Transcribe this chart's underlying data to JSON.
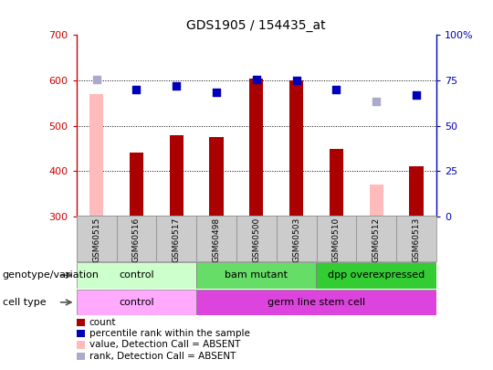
{
  "title": "GDS1905 / 154435_at",
  "samples": [
    "GSM60515",
    "GSM60516",
    "GSM60517",
    "GSM60498",
    "GSM60500",
    "GSM60503",
    "GSM60510",
    "GSM60512",
    "GSM60513"
  ],
  "count_values": [
    570,
    440,
    480,
    475,
    605,
    600,
    450,
    370,
    410
  ],
  "count_absent": [
    true,
    false,
    false,
    false,
    false,
    false,
    false,
    true,
    false
  ],
  "percentile_values": [
    603,
    580,
    588,
    574,
    603,
    600,
    580,
    554,
    568
  ],
  "percentile_absent": [
    true,
    false,
    false,
    false,
    false,
    false,
    false,
    true,
    false
  ],
  "ylim_left": [
    300,
    700
  ],
  "ylim_right": [
    0,
    100
  ],
  "yticks_left": [
    300,
    400,
    500,
    600,
    700
  ],
  "yticks_right": [
    0,
    25,
    50,
    75,
    100
  ],
  "ytick_labels_right": [
    "0",
    "25",
    "50",
    "75",
    "100%"
  ],
  "bar_color_normal": "#aa0000",
  "bar_color_absent": "#ffbbbb",
  "dot_color_normal": "#0000bb",
  "dot_color_absent": "#aaaacc",
  "left_axis_color": "#cc0000",
  "right_axis_color": "#0000bb",
  "bar_width": 0.35,
  "dot_size": 30,
  "xlabels_bg": "#cccccc",
  "genotype_groups": [
    {
      "label": "control",
      "start": 0,
      "end": 3,
      "color": "#ccffcc"
    },
    {
      "label": "bam mutant",
      "start": 3,
      "end": 6,
      "color": "#66dd66"
    },
    {
      "label": "dpp overexpressed",
      "start": 6,
      "end": 9,
      "color": "#33cc33"
    }
  ],
  "celltype_groups": [
    {
      "label": "control",
      "start": 0,
      "end": 3,
      "color": "#ffaaff"
    },
    {
      "label": "germ line stem cell",
      "start": 3,
      "end": 9,
      "color": "#dd44dd"
    }
  ],
  "legend_items": [
    {
      "label": "count",
      "color": "#aa0000"
    },
    {
      "label": "percentile rank within the sample",
      "color": "#0000bb"
    },
    {
      "label": "value, Detection Call = ABSENT",
      "color": "#ffbbbb"
    },
    {
      "label": "rank, Detection Call = ABSENT",
      "color": "#aaaacc"
    }
  ],
  "genotype_label": "genotype/variation",
  "celltype_label": "cell type"
}
